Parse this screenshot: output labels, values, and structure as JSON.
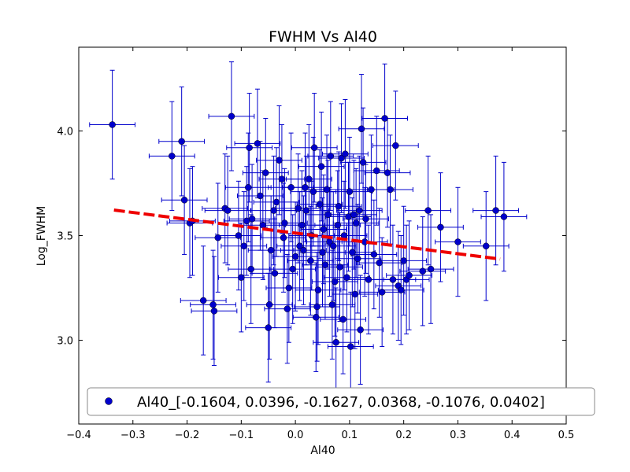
{
  "chart_data": {
    "type": "scatter",
    "title": "FWHM Vs Al40",
    "xlabel": "Al40",
    "ylabel": "Log_FWHM",
    "xlim": [
      -0.4,
      0.5
    ],
    "ylim": [
      2.6,
      4.4
    ],
    "xticks": [
      "−0.4",
      "−0.3",
      "−0.2",
      "−0.1",
      "0.0",
      "0.1",
      "0.2",
      "0.3",
      "0.4",
      "0.5"
    ],
    "xtick_values": [
      -0.4,
      -0.3,
      -0.2,
      -0.1,
      0.0,
      0.1,
      0.2,
      0.3,
      0.4,
      0.5
    ],
    "yticks": [
      "3.0",
      "3.5",
      "4.0"
    ],
    "ytick_values": [
      3.0,
      3.5,
      4.0
    ],
    "grid": false,
    "legend": {
      "position": "bottom",
      "label": "Al40_[-0.1604, 0.0396, -0.1627, 0.0368, -0.1076, 0.0402]"
    },
    "colors": {
      "points": "#0000cc",
      "errorbars": "#0000cc",
      "fit": "#ee0000"
    },
    "fit_line": {
      "x": [
        -0.335,
        0.378
      ],
      "y": [
        3.622,
        3.388
      ]
    },
    "xerr": 0.042,
    "yerr": 0.26,
    "series": [
      {
        "name": "Al40",
        "points": [
          [
            -0.338,
            4.03
          ],
          [
            -0.228,
            3.88
          ],
          [
            -0.21,
            3.95
          ],
          [
            -0.205,
            3.67
          ],
          [
            -0.195,
            3.56
          ],
          [
            -0.19,
            3.57
          ],
          [
            -0.17,
            3.19
          ],
          [
            -0.152,
            3.17
          ],
          [
            -0.15,
            3.14
          ],
          [
            -0.143,
            3.49
          ],
          [
            -0.13,
            3.63
          ],
          [
            -0.125,
            3.62
          ],
          [
            -0.118,
            4.07
          ],
          [
            -0.105,
            3.5
          ],
          [
            -0.1,
            3.3
          ],
          [
            -0.095,
            3.45
          ],
          [
            -0.09,
            3.57
          ],
          [
            -0.087,
            3.73
          ],
          [
            -0.085,
            3.92
          ],
          [
            -0.082,
            3.34
          ],
          [
            -0.08,
            3.58
          ],
          [
            -0.07,
            3.94
          ],
          [
            -0.065,
            3.69
          ],
          [
            -0.06,
            3.55
          ],
          [
            -0.055,
            3.8
          ],
          [
            -0.05,
            3.06
          ],
          [
            -0.048,
            3.17
          ],
          [
            -0.045,
            3.43
          ],
          [
            -0.04,
            3.62
          ],
          [
            -0.038,
            3.32
          ],
          [
            -0.035,
            3.66
          ],
          [
            -0.03,
            3.86
          ],
          [
            -0.025,
            3.77
          ],
          [
            -0.022,
            3.49
          ],
          [
            -0.02,
            3.56
          ],
          [
            -0.015,
            3.15
          ],
          [
            -0.012,
            3.25
          ],
          [
            -0.008,
            3.73
          ],
          [
            -0.005,
            3.34
          ],
          [
            0.0,
            3.4
          ],
          [
            0.005,
            3.63
          ],
          [
            0.008,
            3.45
          ],
          [
            0.012,
            3.55
          ],
          [
            0.015,
            3.43
          ],
          [
            0.018,
            3.73
          ],
          [
            0.02,
            3.62
          ],
          [
            0.025,
            3.77
          ],
          [
            0.028,
            3.38
          ],
          [
            0.03,
            3.5
          ],
          [
            0.033,
            3.71
          ],
          [
            0.035,
            3.92
          ],
          [
            0.038,
            3.11
          ],
          [
            0.04,
            3.16
          ],
          [
            0.042,
            3.24
          ],
          [
            0.045,
            3.65
          ],
          [
            0.048,
            3.83
          ],
          [
            0.05,
            3.42
          ],
          [
            0.052,
            3.53
          ],
          [
            0.055,
            3.36
          ],
          [
            0.058,
            3.72
          ],
          [
            0.06,
            3.6
          ],
          [
            0.063,
            3.47
          ],
          [
            0.065,
            3.88
          ],
          [
            0.068,
            3.17
          ],
          [
            0.07,
            3.45
          ],
          [
            0.073,
            3.28
          ],
          [
            0.075,
            2.99
          ],
          [
            0.078,
            3.55
          ],
          [
            0.08,
            3.64
          ],
          [
            0.082,
            3.35
          ],
          [
            0.085,
            3.87
          ],
          [
            0.088,
            3.1
          ],
          [
            0.09,
            3.5
          ],
          [
            0.092,
            3.89
          ],
          [
            0.095,
            3.3
          ],
          [
            0.098,
            3.59
          ],
          [
            0.1,
            3.71
          ],
          [
            0.102,
            2.97
          ],
          [
            0.105,
            3.42
          ],
          [
            0.108,
            3.6
          ],
          [
            0.11,
            3.22
          ],
          [
            0.112,
            3.56
          ],
          [
            0.115,
            3.39
          ],
          [
            0.118,
            3.62
          ],
          [
            0.12,
            3.05
          ],
          [
            0.122,
            4.01
          ],
          [
            0.125,
            3.85
          ],
          [
            0.128,
            3.47
          ],
          [
            0.13,
            3.58
          ],
          [
            0.135,
            3.29
          ],
          [
            0.14,
            3.72
          ],
          [
            0.145,
            3.41
          ],
          [
            0.15,
            3.81
          ],
          [
            0.155,
            3.37
          ],
          [
            0.16,
            3.23
          ],
          [
            0.165,
            4.06
          ],
          [
            0.17,
            3.8
          ],
          [
            0.175,
            3.72
          ],
          [
            0.18,
            3.29
          ],
          [
            0.185,
            3.93
          ],
          [
            0.19,
            3.26
          ],
          [
            0.195,
            3.24
          ],
          [
            0.2,
            3.38
          ],
          [
            0.205,
            3.29
          ],
          [
            0.21,
            3.31
          ],
          [
            0.235,
            3.33
          ],
          [
            0.245,
            3.62
          ],
          [
            0.25,
            3.34
          ],
          [
            0.268,
            3.54
          ],
          [
            0.3,
            3.47
          ],
          [
            0.352,
            3.45
          ],
          [
            0.37,
            3.62
          ],
          [
            0.385,
            3.59
          ]
        ]
      }
    ]
  }
}
